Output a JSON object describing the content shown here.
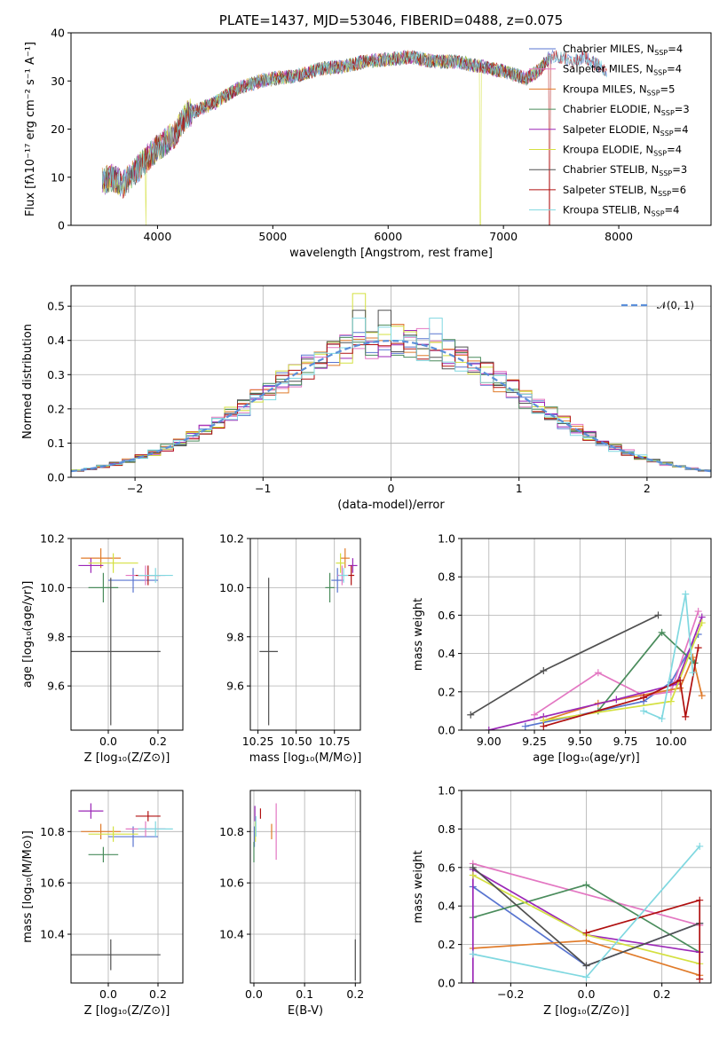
{
  "colors": {
    "Chabrier MILES": "#5975d0",
    "Salpeter MILES": "#e377c2",
    "Kroupa MILES": "#e07b2a",
    "Chabrier ELODIE": "#4a8c5c",
    "Salpeter ELODIE": "#9b27b7",
    "Kroupa ELODIE": "#d4e040",
    "Chabrier STELIB": "#505050",
    "Salpeter STELIB": "#b01010",
    "Kroupa STELIB": "#80d8e0"
  },
  "models": [
    "Chabrier MILES",
    "Salpeter MILES",
    "Kroupa MILES",
    "Chabrier ELODIE",
    "Salpeter ELODIE",
    "Kroupa ELODIE",
    "Chabrier STELIB",
    "Salpeter STELIB",
    "Kroupa STELIB"
  ],
  "chart_data": [
    {
      "id": "spectrum",
      "type": "line",
      "title": "PLATE=1437, MJD=53046, FIBERID=0488, z=0.075",
      "xlabel": "wavelength [Angstrom, rest frame]",
      "ylabel": "Flux [fλ10⁻¹⁷ erg cm⁻² s⁻¹ A⁻¹]",
      "xlim": [
        3250,
        8800
      ],
      "ylim": [
        0,
        40
      ],
      "xticks": [
        4000,
        5000,
        6000,
        7000,
        8000
      ],
      "yticks": [
        0,
        10,
        20,
        30,
        40
      ],
      "grid": false,
      "legend_position": "top-right",
      "legend": [
        {
          "model": "Chabrier MILES",
          "label": "Chabrier MILES, N",
          "sub": "SSP",
          "n": "=4"
        },
        {
          "model": "Salpeter MILES",
          "label": "Salpeter MILES, N",
          "sub": "SSP",
          "n": "=4"
        },
        {
          "model": "Kroupa MILES",
          "label": "Kroupa MILES, N",
          "sub": "SSP",
          "n": "=5"
        },
        {
          "model": "Chabrier ELODIE",
          "label": "Chabrier ELODIE, N",
          "sub": "SSP",
          "n": "=3"
        },
        {
          "model": "Salpeter ELODIE",
          "label": "Salpeter ELODIE, N",
          "sub": "SSP",
          "n": "=4"
        },
        {
          "model": "Kroupa ELODIE",
          "label": "Kroupa ELODIE, N",
          "sub": "SSP",
          "n": "=4"
        },
        {
          "model": "Chabrier STELIB",
          "label": "Chabrier STELIB, N",
          "sub": "SSP",
          "n": "=3"
        },
        {
          "model": "Salpeter STELIB",
          "label": "Salpeter STELIB, N",
          "sub": "SSP",
          "n": "=6"
        },
        {
          "model": "Kroupa STELIB",
          "label": "Kroupa STELIB, N",
          "sub": "SSP",
          "n": "=4"
        }
      ],
      "continuum": [
        [
          3520,
          0
        ],
        [
          3521,
          9
        ],
        [
          3600,
          10
        ],
        [
          3700,
          8.5
        ],
        [
          3800,
          11
        ],
        [
          3950,
          15
        ],
        [
          4050,
          17
        ],
        [
          4150,
          19
        ],
        [
          4250,
          23
        ],
        [
          4350,
          24
        ],
        [
          4500,
          25.5
        ],
        [
          4700,
          28.5
        ],
        [
          4900,
          30
        ],
        [
          5000,
          30.5
        ],
        [
          5200,
          31
        ],
        [
          5400,
          32.5
        ],
        [
          5600,
          33
        ],
        [
          5800,
          34
        ],
        [
          6000,
          34.5
        ],
        [
          6200,
          35
        ],
        [
          6400,
          34
        ],
        [
          6600,
          34
        ],
        [
          6800,
          33
        ],
        [
          7000,
          32
        ],
        [
          7200,
          30.5
        ],
        [
          7300,
          32
        ],
        [
          7400,
          35
        ],
        [
          7500,
          35
        ],
        [
          7600,
          34
        ],
        [
          7700,
          35
        ],
        [
          7800,
          33.5
        ],
        [
          7900,
          32
        ]
      ],
      "dips": [
        [
          3900,
          0,
          "Kroupa ELODIE"
        ],
        [
          6800,
          0,
          "Kroupa ELODIE"
        ],
        [
          7400,
          0,
          "Salpeter STELIB"
        ]
      ]
    },
    {
      "id": "residuals",
      "type": "histogram",
      "xlabel": "(data-model)/error",
      "ylabel": "Normed distribution",
      "xlim": [
        -2.5,
        2.5
      ],
      "ylim": [
        0,
        0.56
      ],
      "xticks": [
        -2,
        -1,
        0,
        1,
        2
      ],
      "yticks": [
        0.0,
        0.1,
        0.2,
        0.3,
        0.4,
        0.5
      ],
      "grid": true,
      "bin_width": 0.1,
      "reference_label": "𝒩(0, 1)",
      "reference_color": "#5b8fd9",
      "legend_position": "top-right",
      "peak_values": {
        "Kroupa ELODIE": 0.537,
        "Chabrier STELIB": 0.488,
        "Kroupa STELIB": 0.465
      }
    },
    {
      "id": "age_vs_Z",
      "type": "scatter",
      "xlabel": "Z [log₁₀(Z/Z⊙)]",
      "ylabel": "age  [log₁₀(age/yr)]",
      "xlim": [
        -0.15,
        0.3
      ],
      "ylim": [
        9.42,
        10.2
      ],
      "xticks": [
        0.0,
        0.2
      ],
      "yticks": [
        9.6,
        9.8,
        10.0,
        10.2
      ],
      "grid": true,
      "points": [
        {
          "model": "Chabrier MILES",
          "x": 0.1,
          "y": 10.03,
          "xerr": 0.1,
          "yerr": 0.05
        },
        {
          "model": "Salpeter MILES",
          "x": 0.15,
          "y": 10.05,
          "xerr": 0.08,
          "yerr": 0.04
        },
        {
          "model": "Kroupa MILES",
          "x": -0.03,
          "y": 10.12,
          "xerr": 0.08,
          "yerr": 0.04
        },
        {
          "model": "Chabrier ELODIE",
          "x": -0.02,
          "y": 10.0,
          "xerr": 0.06,
          "yerr": 0.06
        },
        {
          "model": "Salpeter ELODIE",
          "x": -0.07,
          "y": 10.09,
          "xerr": 0.05,
          "yerr": 0.03
        },
        {
          "model": "Kroupa ELODIE",
          "x": 0.02,
          "y": 10.1,
          "xerr": 0.1,
          "yerr": 0.04
        },
        {
          "model": "Chabrier STELIB",
          "x": 0.01,
          "y": 9.74,
          "xerr": 0.2,
          "yerr": 0.3
        },
        {
          "model": "Salpeter STELIB",
          "x": 0.16,
          "y": 10.05,
          "xerr": 0.05,
          "yerr": 0.04
        },
        {
          "model": "Kroupa STELIB",
          "x": 0.19,
          "y": 10.05,
          "xerr": 0.07,
          "yerr": 0.03
        }
      ]
    },
    {
      "id": "age_vs_mass",
      "type": "scatter",
      "xlabel": "mass [log₁₀(M/M⊙)]",
      "ylabel": "",
      "xlim": [
        10.2,
        10.92
      ],
      "ylim": [
        9.42,
        10.2
      ],
      "xticks": [
        10.25,
        10.5,
        10.75
      ],
      "yticks": [
        9.6,
        9.8,
        10.0,
        10.2
      ],
      "grid": true,
      "points": [
        {
          "model": "Chabrier MILES",
          "x": 10.77,
          "y": 10.03,
          "xerr": 0.04,
          "yerr": 0.05
        },
        {
          "model": "Salpeter MILES",
          "x": 10.8,
          "y": 10.05,
          "xerr": 0.03,
          "yerr": 0.04
        },
        {
          "model": "Kroupa MILES",
          "x": 10.82,
          "y": 10.12,
          "xerr": 0.03,
          "yerr": 0.04
        },
        {
          "model": "Chabrier ELODIE",
          "x": 10.72,
          "y": 10.0,
          "xerr": 0.03,
          "yerr": 0.06
        },
        {
          "model": "Salpeter ELODIE",
          "x": 10.87,
          "y": 10.09,
          "xerr": 0.03,
          "yerr": 0.03
        },
        {
          "model": "Kroupa ELODIE",
          "x": 10.79,
          "y": 10.1,
          "xerr": 0.03,
          "yerr": 0.04
        },
        {
          "model": "Chabrier STELIB",
          "x": 10.32,
          "y": 9.74,
          "xerr": 0.06,
          "yerr": 0.3
        },
        {
          "model": "Salpeter STELIB",
          "x": 10.86,
          "y": 10.05,
          "xerr": 0.02,
          "yerr": 0.04
        },
        {
          "model": "Kroupa STELIB",
          "x": 10.81,
          "y": 10.05,
          "xerr": 0.03,
          "yerr": 0.03
        }
      ]
    },
    {
      "id": "massweight_vs_age",
      "type": "line",
      "xlabel": "age  [log₁₀(age/yr)]",
      "ylabel": "mass weight",
      "xlim": [
        8.85,
        10.22
      ],
      "ylim": [
        0,
        1
      ],
      "xticks": [
        9.0,
        9.25,
        9.5,
        9.75,
        10.0
      ],
      "yticks": [
        0.0,
        0.2,
        0.4,
        0.6,
        0.8,
        1.0
      ],
      "grid": true,
      "series": [
        {
          "model": "Chabrier MILES",
          "x": [
            9.2,
            9.85,
            10.0,
            10.15
          ],
          "y": [
            0.02,
            0.15,
            0.25,
            0.5
          ]
        },
        {
          "model": "Salpeter MILES",
          "x": [
            9.25,
            9.6,
            9.85,
            10.0,
            10.15
          ],
          "y": [
            0.08,
            0.3,
            0.18,
            0.2,
            0.62
          ]
        },
        {
          "model": "Kroupa MILES",
          "x": [
            9.3,
            9.6,
            10.05,
            10.12,
            10.17
          ],
          "y": [
            0.05,
            0.14,
            0.22,
            0.38,
            0.18
          ]
        },
        {
          "model": "Chabrier ELODIE",
          "x": [
            9.6,
            9.95,
            10.13
          ],
          "y": [
            0.1,
            0.51,
            0.35
          ]
        },
        {
          "model": "Salpeter ELODIE",
          "x": [
            9.0,
            9.3,
            9.7,
            10.03,
            10.17
          ],
          "y": [
            0.0,
            0.07,
            0.16,
            0.24,
            0.59
          ]
        },
        {
          "model": "Kroupa ELODIE",
          "x": [
            9.3,
            10.0,
            10.17
          ],
          "y": [
            0.05,
            0.15,
            0.56
          ]
        },
        {
          "model": "Chabrier STELIB",
          "x": [
            8.9,
            9.3,
            9.93
          ],
          "y": [
            0.08,
            0.31,
            0.6
          ]
        },
        {
          "model": "Salpeter STELIB",
          "x": [
            9.3,
            9.85,
            10.05,
            10.08,
            10.15
          ],
          "y": [
            0.02,
            0.17,
            0.26,
            0.07,
            0.43
          ]
        },
        {
          "model": "Kroupa STELIB",
          "x": [
            9.85,
            9.95,
            10.08,
            10.12
          ],
          "y": [
            0.1,
            0.06,
            0.71,
            0.3
          ]
        }
      ]
    },
    {
      "id": "mass_vs_Z",
      "type": "scatter",
      "xlabel": "Z [log₁₀(Z/Z⊙)]",
      "ylabel": "mass [log₁₀(M/M⊙)]",
      "xlim": [
        -0.15,
        0.3
      ],
      "ylim": [
        10.21,
        10.96
      ],
      "xticks": [
        0.0,
        0.2
      ],
      "yticks": [
        10.4,
        10.6,
        10.8
      ],
      "grid": true,
      "points": [
        {
          "model": "Chabrier MILES",
          "x": 0.1,
          "y": 10.78,
          "xerr": 0.1,
          "yerr": 0.04
        },
        {
          "model": "Salpeter MILES",
          "x": 0.15,
          "y": 10.81,
          "xerr": 0.08,
          "yerr": 0.03
        },
        {
          "model": "Kroupa MILES",
          "x": -0.03,
          "y": 10.8,
          "xerr": 0.08,
          "yerr": 0.03
        },
        {
          "model": "Chabrier ELODIE",
          "x": -0.02,
          "y": 10.71,
          "xerr": 0.06,
          "yerr": 0.03
        },
        {
          "model": "Salpeter ELODIE",
          "x": -0.07,
          "y": 10.88,
          "xerr": 0.05,
          "yerr": 0.03
        },
        {
          "model": "Kroupa ELODIE",
          "x": 0.02,
          "y": 10.79,
          "xerr": 0.1,
          "yerr": 0.03
        },
        {
          "model": "Chabrier STELIB",
          "x": 0.01,
          "y": 10.32,
          "xerr": 0.2,
          "yerr": 0.06
        },
        {
          "model": "Salpeter STELIB",
          "x": 0.16,
          "y": 10.86,
          "xerr": 0.05,
          "yerr": 0.02
        },
        {
          "model": "Kroupa STELIB",
          "x": 0.19,
          "y": 10.81,
          "xerr": 0.07,
          "yerr": 0.03
        }
      ]
    },
    {
      "id": "mass_vs_ebv",
      "type": "scatter",
      "xlabel": "E(B-V)",
      "ylabel": "",
      "xlim": [
        -0.007,
        0.21
      ],
      "ylim": [
        10.21,
        10.96
      ],
      "xticks": [
        0.0,
        0.1,
        0.2
      ],
      "yticks": [
        10.4,
        10.6,
        10.8
      ],
      "grid": true,
      "points": [
        {
          "model": "Chabrier MILES",
          "x": 0.001,
          "y": 10.78,
          "xerr": 0,
          "yerr": 0.04
        },
        {
          "model": "Salpeter MILES",
          "x": 0.044,
          "y": 10.8,
          "xerr": 0,
          "yerr": 0.11
        },
        {
          "model": "Kroupa MILES",
          "x": 0.035,
          "y": 10.8,
          "xerr": 0,
          "yerr": 0.03
        },
        {
          "model": "Chabrier ELODIE",
          "x": 0.0,
          "y": 10.72,
          "xerr": 0,
          "yerr": 0.04
        },
        {
          "model": "Salpeter ELODIE",
          "x": 0.002,
          "y": 10.87,
          "xerr": 0,
          "yerr": 0.03
        },
        {
          "model": "Kroupa ELODIE",
          "x": 0.003,
          "y": 10.8,
          "xerr": 0,
          "yerr": 0.04
        },
        {
          "model": "Chabrier STELIB",
          "x": 0.2,
          "y": 10.3,
          "xerr": 0,
          "yerr": 0.08
        },
        {
          "model": "Salpeter STELIB",
          "x": 0.013,
          "y": 10.87,
          "xerr": 0,
          "yerr": 0.02
        },
        {
          "model": "Kroupa STELIB",
          "x": 0.004,
          "y": 10.82,
          "xerr": 0,
          "yerr": 0.04
        }
      ]
    },
    {
      "id": "massweight_vs_Z",
      "type": "line",
      "xlabel": "Z [log₁₀(Z/Z⊙)]",
      "ylabel": "mass weight",
      "xlim": [
        -0.33,
        0.33
      ],
      "ylim": [
        0,
        1
      ],
      "xticks": [
        -0.2,
        0.0,
        0.2
      ],
      "yticks": [
        0.0,
        0.2,
        0.4,
        0.6,
        0.8,
        1.0
      ],
      "grid": true,
      "series": [
        {
          "model": "Chabrier MILES",
          "x": [
            -0.3,
            0.0,
            0.3
          ],
          "y": [
            0.5,
            0.09,
            0.31
          ]
        },
        {
          "model": "Salpeter MILES",
          "x": [
            -0.3,
            0.3
          ],
          "y": [
            0.62,
            0.3
          ]
        },
        {
          "model": "Kroupa MILES",
          "x": [
            -0.3,
            0.0,
            0.3
          ],
          "y": [
            0.18,
            0.22,
            0.04
          ]
        },
        {
          "model": "Chabrier ELODIE",
          "x": [
            -0.3,
            0.0,
            0.3
          ],
          "y": [
            0.34,
            0.51,
            0.16
          ]
        },
        {
          "model": "Salpeter ELODIE",
          "x": [
            -0.3,
            -0.3,
            0.0,
            0.3
          ],
          "y": [
            0.0,
            0.59,
            0.25,
            0.16
          ]
        },
        {
          "model": "Kroupa ELODIE",
          "x": [
            -0.3,
            0.0,
            0.3
          ],
          "y": [
            0.56,
            0.25,
            0.1
          ]
        },
        {
          "model": "Chabrier STELIB",
          "x": [
            -0.3,
            0.0,
            0.3
          ],
          "y": [
            0.6,
            0.09,
            0.31
          ]
        },
        {
          "model": "Salpeter STELIB",
          "x": [
            0.0,
            0.3,
            0.3
          ],
          "y": [
            0.26,
            0.43,
            0.02
          ]
        },
        {
          "model": "Kroupa STELIB",
          "x": [
            -0.3,
            0.0,
            0.3
          ],
          "y": [
            0.15,
            0.03,
            0.71
          ]
        }
      ]
    }
  ]
}
